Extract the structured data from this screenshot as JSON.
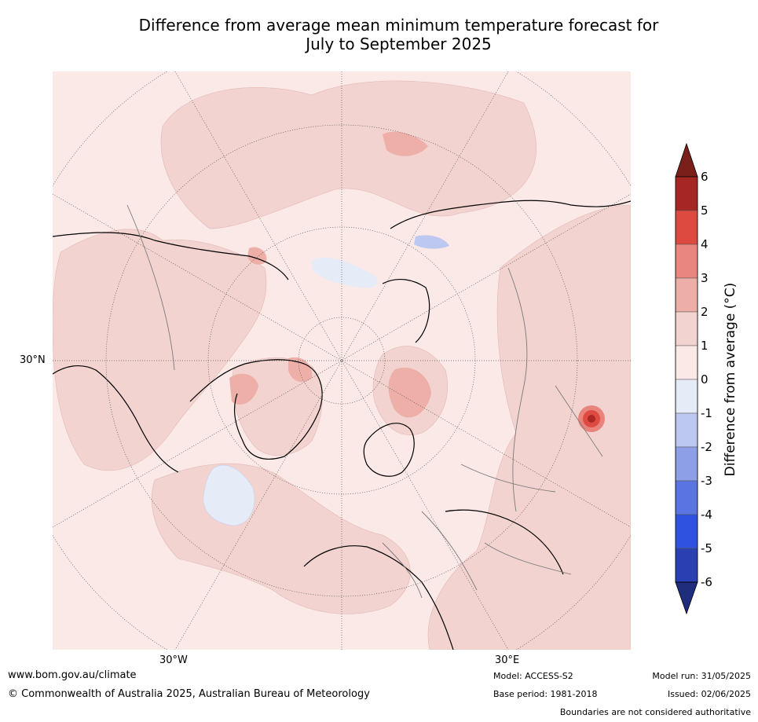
{
  "title": "Difference from average mean minimum temperature forecast for\nJuly to September 2025",
  "map": {
    "lat_label": "30°N",
    "lon_labels": [
      "30°W",
      "30°E"
    ],
    "colors": {
      "ocean_low_positive": "#fbe9e7",
      "land_low_positive": "#f2d3d0",
      "anomaly_1_2": "#f2d3d0",
      "anomaly_2_3": "#edafa8",
      "anomaly_3_4": "#e8847c",
      "anomaly_4_5": "#de4b42",
      "anomaly_5_6": "#ad2823",
      "anomaly_neg_0_1": "#e6ebf8",
      "anomaly_neg_1_2": "#bcc8ef"
    }
  },
  "colorbar": {
    "label": "Difference from average (°C)",
    "ticks": [
      "6",
      "5",
      "4",
      "3",
      "2",
      "1",
      "0",
      "-1",
      "-2",
      "-3",
      "-4",
      "-5",
      "-6"
    ],
    "colors": [
      "#a52622",
      "#dc4a40",
      "#e9867f",
      "#edaea8",
      "#f2d3d0",
      "#fbe9e7",
      "#e6ebf8",
      "#bcc8ef",
      "#8d9fe6",
      "#5a75e2",
      "#2f53de",
      "#2a3fb2"
    ],
    "top_arrow_color": "#7a1f19",
    "bottom_arrow_color": "#1f2d7d"
  },
  "footer": {
    "url": "www.bom.gov.au/climate",
    "copyright": "© Commonwealth of Australia 2025, Australian Bureau of Meteorology",
    "model": "Model: ACCESS-S2",
    "base_period": "Base period: 1981-2018",
    "model_run": "Model run: 31/05/2025",
    "issued": "Issued: 02/06/2025",
    "boundaries_note": "Boundaries are not considered authoritative"
  }
}
